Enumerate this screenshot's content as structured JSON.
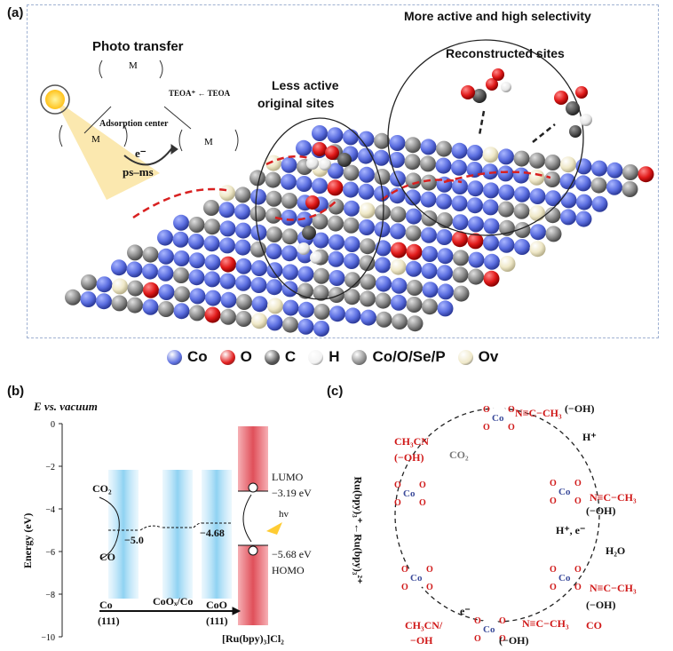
{
  "panel_a": {
    "label": "(a)",
    "photo_transfer": "Photo transfer",
    "less_active_line1": "Less active",
    "less_active_line2": "original sites",
    "more_active": "More active and high selectivity",
    "reconstructed": "Reconstructed sites",
    "adsorption_center": "Adsorption center",
    "teoa": "TEOA⁺ ← TEOA",
    "electron": "e⁻",
    "ps_ms": "ps–ms"
  },
  "legend": [
    {
      "label": "Co",
      "color": "#5b6ee0"
    },
    {
      "label": "O",
      "color": "#e01a1a"
    },
    {
      "label": "C",
      "color": "#555555"
    },
    {
      "label": "H",
      "color": "#f2f2f2"
    },
    {
      "label": "Co/O/Se/P",
      "color": "#8c8c8c"
    },
    {
      "label": "Ov",
      "color": "#efe8c8"
    }
  ],
  "panel_b": {
    "label": "(b)",
    "title": "E vs. vacuum",
    "ylabel": "Energy (eV)",
    "yticks": [
      "0",
      "−2",
      "−4",
      "−6",
      "−8",
      "−10"
    ],
    "co2": "CO₂",
    "co": "CO",
    "val1": "−5.0",
    "val2": "−4.68",
    "lumo": "LUMO",
    "lumo_val": "−3.19 eV",
    "homo_val": "−5.68 eV",
    "homo": "HOMO",
    "hv": "hv",
    "x1a": "Co",
    "x1b": "(111)",
    "x2": "CoOₓ/Co",
    "x3a": "CoO",
    "x3b": "(111)",
    "x4": "[Ru(bpy)₃]Cl₂"
  },
  "panel_c": {
    "label": "(c)",
    "oh1": "(−OH)",
    "h_plus": "H⁺",
    "ch3cn": "CH₃CN",
    "oh2": "(−OH)",
    "co2": "CO₂",
    "ru": "Ru(bpy)₃⁺←Ru(bpy)₃²⁺",
    "oh3": "(−OH)",
    "he": "H⁺, e⁻",
    "h2o": "H₂O",
    "oh4": "(−OH)",
    "e": "e⁻",
    "ch3cn2": "CH₃CN/",
    "oh5": "−OH",
    "oh6": "(−OH)",
    "co": "CO",
    "nc": "N≡C−CH₃"
  }
}
